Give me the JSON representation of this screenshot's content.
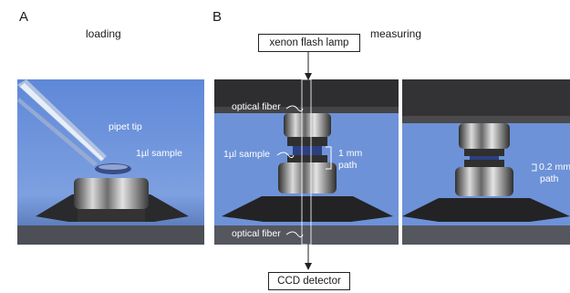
{
  "panel_a": {
    "letter": "A",
    "caption": "loading",
    "labels": {
      "pipet_tip": "pipet tip",
      "sample": "1µl sample"
    }
  },
  "panel_b": {
    "letter": "B",
    "caption": "measuring",
    "lamp": "xenon flash lamp",
    "detector": "CCD detector",
    "labels": {
      "fiber_top": "optical fiber",
      "fiber_bottom": "optical fiber",
      "sample": "1µl sample",
      "path_1mm_value": "1 mm",
      "path_1mm_word": "path",
      "path_02mm_value": "0.2 mm",
      "path_02mm_word": "path"
    }
  },
  "colors": {
    "background_blue": "#6a8fd6",
    "dark_plate": "#2b2b2d",
    "metal": "#c9c9c9"
  }
}
